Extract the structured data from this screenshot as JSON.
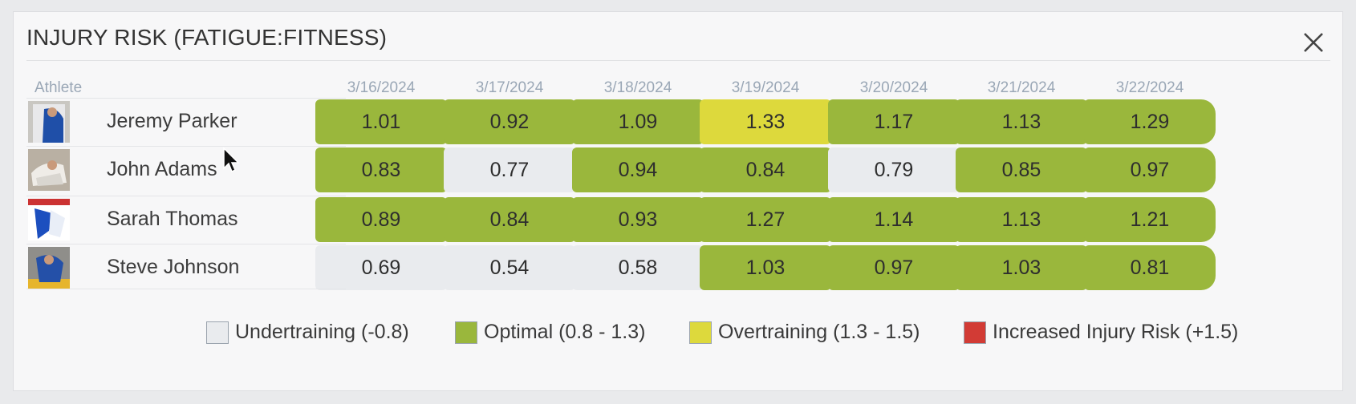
{
  "title": "INJURY RISK (FATIGUE:FITNESS)",
  "columns": {
    "athlete": "Athlete",
    "dates": [
      "3/16/2024",
      "3/17/2024",
      "3/18/2024",
      "3/19/2024",
      "3/20/2024",
      "3/21/2024",
      "3/22/2024"
    ]
  },
  "colors": {
    "undertraining": "#e9ebee",
    "optimal": "#9ab73c",
    "overtraining": "#ddd93c",
    "injury": "#d23b35"
  },
  "rows": [
    {
      "name": "Jeremy Parker",
      "values": [
        "1.01",
        "0.92",
        "1.09",
        "1.33",
        "1.17",
        "1.13",
        "1.29"
      ],
      "status": [
        "optimal",
        "optimal",
        "optimal",
        "overtraining",
        "optimal",
        "optimal",
        "optimal"
      ]
    },
    {
      "name": "John Adams",
      "values": [
        "0.83",
        "0.77",
        "0.94",
        "0.84",
        "0.79",
        "0.85",
        "0.97"
      ],
      "status": [
        "optimal",
        "undertraining",
        "optimal",
        "optimal",
        "undertraining",
        "optimal",
        "optimal"
      ]
    },
    {
      "name": "Sarah Thomas",
      "values": [
        "0.89",
        "0.84",
        "0.93",
        "1.27",
        "1.14",
        "1.13",
        "1.21"
      ],
      "status": [
        "optimal",
        "optimal",
        "optimal",
        "optimal",
        "optimal",
        "optimal",
        "optimal"
      ]
    },
    {
      "name": "Steve Johnson",
      "values": [
        "0.69",
        "0.54",
        "0.58",
        "1.03",
        "0.97",
        "1.03",
        "0.81"
      ],
      "status": [
        "undertraining",
        "undertraining",
        "undertraining",
        "optimal",
        "optimal",
        "optimal",
        "optimal"
      ]
    }
  ],
  "legend": [
    {
      "label": "Undertraining (-0.8)",
      "status": "undertraining"
    },
    {
      "label": "Optimal (0.8 - 1.3)",
      "status": "optimal"
    },
    {
      "label": "Overtraining (1.3 - 1.5)",
      "status": "overtraining"
    },
    {
      "label": "Increased Injury Risk (+1.5)",
      "status": "injury"
    }
  ]
}
